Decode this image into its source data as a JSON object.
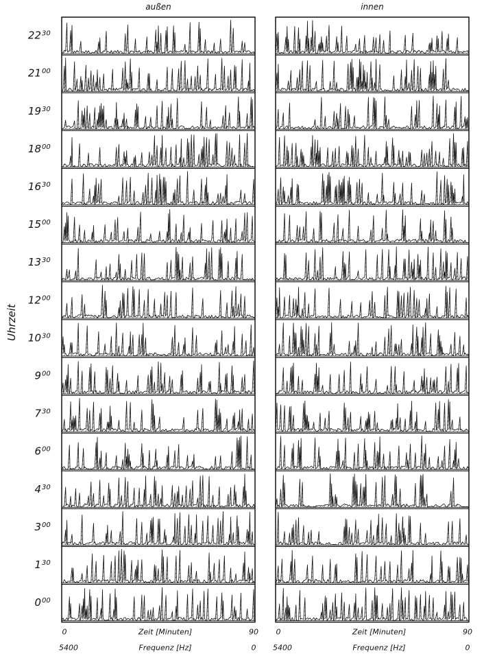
{
  "y_label": "Uhrzeit",
  "rows": [
    {
      "hour": "22",
      "minute": "30"
    },
    {
      "hour": "21",
      "minute": "00"
    },
    {
      "hour": "19",
      "minute": "30"
    },
    {
      "hour": "18",
      "minute": "00"
    },
    {
      "hour": "16",
      "minute": "30"
    },
    {
      "hour": "15",
      "minute": "00"
    },
    {
      "hour": "13",
      "minute": "30"
    },
    {
      "hour": "12",
      "minute": "00"
    },
    {
      "hour": "10",
      "minute": "30"
    },
    {
      "hour": "9",
      "minute": "00"
    },
    {
      "hour": "7",
      "minute": "30"
    },
    {
      "hour": "6",
      "minute": "00"
    },
    {
      "hour": "4",
      "minute": "30"
    },
    {
      "hour": "3",
      "minute": "00"
    },
    {
      "hour": "1",
      "minute": "30"
    },
    {
      "hour": "0",
      "minute": "00"
    }
  ],
  "columns": [
    {
      "title": "außen",
      "time_axis": {
        "start": "0",
        "label": "Zeit  [Minuten]",
        "end": "90"
      },
      "freq_axis": {
        "start": "5400",
        "label": "Frequenz  [Hz]",
        "end": "0"
      }
    },
    {
      "title": "innen",
      "time_axis": {
        "start": "0",
        "label": "Zeit  [Minuten]",
        "end": "90"
      },
      "freq_axis": {
        "start": "5400",
        "label": "Frequenz  [Hz]",
        "end": "0"
      }
    }
  ]
}
